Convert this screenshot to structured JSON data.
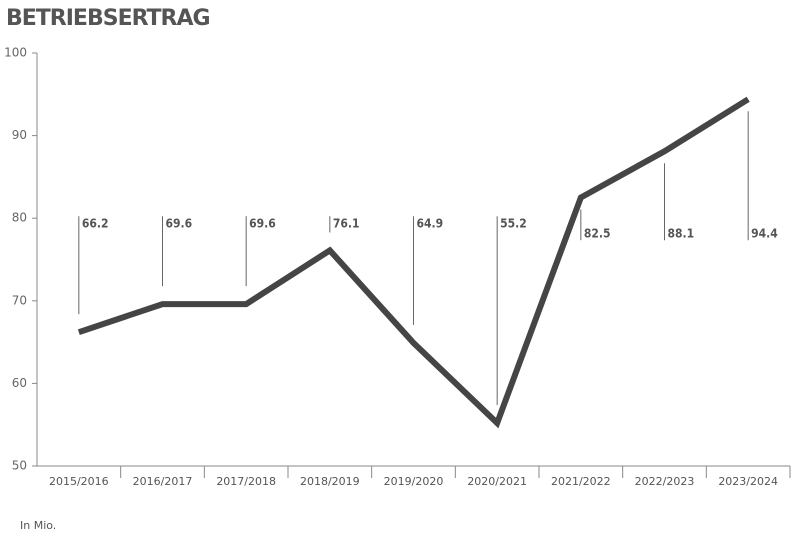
{
  "chart_data": {
    "type": "line",
    "title": "BETRIEBSERTRAG",
    "annotation": "In Mio.",
    "categories": [
      "2015/2016",
      "2016/2017",
      "2017/2018",
      "2018/2019",
      "2019/2020",
      "2020/2021",
      "2021/2022",
      "2022/2023",
      "2023/2024"
    ],
    "values": [
      66.2,
      69.6,
      69.6,
      76.1,
      64.9,
      55.2,
      82.5,
      88.1,
      94.4
    ],
    "color": "#454545",
    "ylim": [
      50,
      100
    ],
    "yticks": [
      50,
      60,
      70,
      80,
      90,
      100
    ],
    "grid": false
  }
}
